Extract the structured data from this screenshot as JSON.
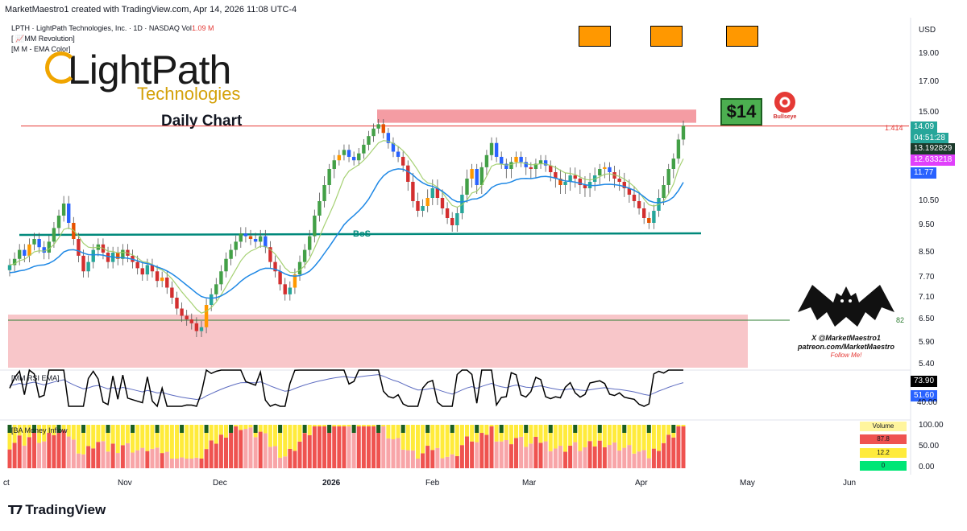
{
  "header": "MarketMaestro1 created with TradingView.com, Apr 14, 2026 11:08 UTC-4",
  "symbol": {
    "text": "LPTH · LightPath Technologies, Inc. · 1D · NASDAQ  Vol",
    "vol": "1.09 M"
  },
  "indicators": [
    "[ 📈MM Revolution]",
    "[M M - EMA Color]"
  ],
  "logo": {
    "main": "LightPath",
    "sub": "Technologies"
  },
  "label_daily": "Daily Chart",
  "target_badge": "$14",
  "bullseye_label": "Bullseye",
  "bos_label": "BoS",
  "line_label_1414": "1.414",
  "line_label_82": "82",
  "watermark": {
    "line1": "X @MarketMaestro1",
    "line2": "patreon.com/MarketMaestro",
    "line3": "Follow Me!"
  },
  "currency": "USD",
  "tradingview_logo": "TradingView",
  "price_tags": [
    {
      "value": "14.09",
      "color": "#26a69a"
    },
    {
      "value": "04:51:28",
      "color": "#26a69a"
    },
    {
      "value": "13.192829",
      "color": "#1b3a2b"
    },
    {
      "value": "12.633218",
      "color": "#e040fb"
    },
    {
      "value": "11.77",
      "color": "#2962ff"
    }
  ],
  "rsi_panel": {
    "label": "[MM RSI EMA]",
    "tag1": "73.90",
    "tag2": "51.60",
    "tick": "40.00"
  },
  "mf_panel": {
    "label": "[BA Money Inflow",
    "ticks": [
      "100.00",
      "50.00",
      "0.00"
    ],
    "table": {
      "header": "Volume",
      "rows": [
        {
          "v": "87.8",
          "c": "#ef5350"
        },
        {
          "v": "12.2",
          "c": "#ffeb3b"
        },
        {
          "v": "0",
          "c": "#00e676"
        }
      ]
    }
  },
  "chart_data": {
    "type": "candlestick",
    "y_axis": {
      "scale": "log",
      "ticks": [
        19.0,
        17.0,
        15.0,
        13.5,
        11.5,
        10.5,
        9.5,
        8.5,
        7.7,
        7.1,
        6.5,
        5.9,
        5.4
      ],
      "tick_labels": [
        "19.00",
        "17.00",
        "15.00",
        "",
        "",
        "10.50",
        "9.50",
        "8.50",
        "7.70",
        "7.10",
        "6.50",
        "5.90",
        "5.40"
      ]
    },
    "x_labels": [
      "ct",
      "Nov",
      "Dec",
      "2026",
      "Feb",
      "Mar",
      "Apr",
      "May",
      "Jun"
    ],
    "closes": [
      8.1,
      8.3,
      8.6,
      8.4,
      8.8,
      9.0,
      8.7,
      8.5,
      8.9,
      9.4,
      9.9,
      10.4,
      9.6,
      9.0,
      8.4,
      7.9,
      8.2,
      8.6,
      8.8,
      8.5,
      8.2,
      8.5,
      8.3,
      8.6,
      8.4,
      8.2,
      8.0,
      7.8,
      8.1,
      7.9,
      7.6,
      7.7,
      7.4,
      7.1,
      6.8,
      6.6,
      6.5,
      6.4,
      6.2,
      6.3,
      6.9,
      7.2,
      7.5,
      7.9,
      8.3,
      8.6,
      8.9,
      9.2,
      9.1,
      9.0,
      8.9,
      9.1,
      8.7,
      8.2,
      7.9,
      7.5,
      7.2,
      7.4,
      7.8,
      8.2,
      8.6,
      9.1,
      9.9,
      10.5,
      11.0,
      11.5,
      12.0,
      12.3,
      12.6,
      12.2,
      12.0,
      12.4,
      12.9,
      13.4,
      13.9,
      14.2,
      13.6,
      13.0,
      12.5,
      12.2,
      11.7,
      11.1,
      10.5,
      10.1,
      10.3,
      10.6,
      10.9,
      10.6,
      10.2,
      9.8,
      9.5,
      10.0,
      10.7,
      11.2,
      11.5,
      11.0,
      11.6,
      12.3,
      13.0,
      12.2,
      11.8,
      11.5,
      11.9,
      12.2,
      11.9,
      11.6,
      11.5,
      11.8,
      12.0,
      11.7,
      11.4,
      11.2,
      11.0,
      11.1,
      11.3,
      11.2,
      11.0,
      10.9,
      11.1,
      11.3,
      11.5,
      11.6,
      11.4,
      11.2,
      11.1,
      10.9,
      10.7,
      10.5,
      10.2,
      9.8,
      9.6,
      10.1,
      10.6,
      11.0,
      11.5,
      12.1,
      13.2,
      14.09
    ]
  }
}
